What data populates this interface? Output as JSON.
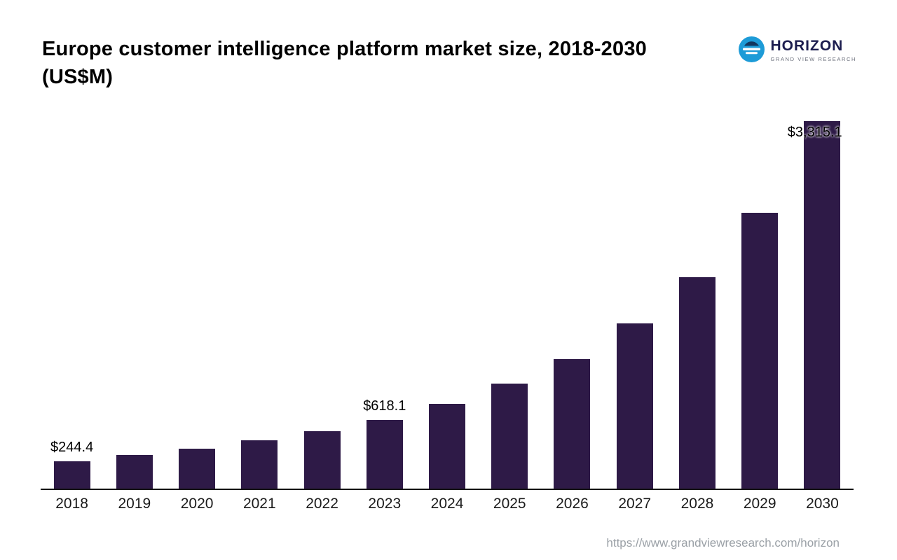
{
  "header": {
    "title_line1": "Europe customer intelligence platform market size, 2018-2030",
    "title_line2": "(US$M)",
    "logo": {
      "name": "HORIZON",
      "subtitle": "GRAND VIEW RESEARCH",
      "icon": "horizon-circle-icon",
      "icon_color": "#1d9bd7",
      "text_color": "#1c1d4f"
    }
  },
  "chart_data": {
    "type": "bar",
    "title": "Europe customer intelligence platform market size, 2018-2030 (US$M)",
    "categories": [
      "2018",
      "2019",
      "2020",
      "2021",
      "2022",
      "2023",
      "2024",
      "2025",
      "2026",
      "2027",
      "2028",
      "2029",
      "2030"
    ],
    "values": [
      244.4,
      300.5,
      360.2,
      432.8,
      515.6,
      618.1,
      762.4,
      945.0,
      1170.3,
      1490.6,
      1905.2,
      2490.8,
      3315.1
    ],
    "data_labels": [
      "$244.4",
      "",
      "",
      "",
      "",
      "$618.1",
      "",
      "",
      "",
      "",
      "",
      "",
      "$3,315.1"
    ],
    "bar_color": "#2e1a47",
    "ylim": [
      0,
      3400
    ],
    "xlabel": "",
    "ylabel": "",
    "grid": false,
    "legend": false,
    "axis_line_color": "#141414"
  },
  "footer": {
    "url": "https://www.grandviewresearch.com/horizon"
  }
}
